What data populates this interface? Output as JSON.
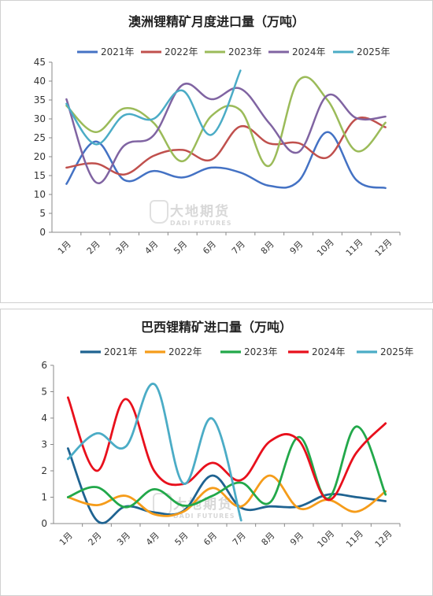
{
  "chart_data": [
    {
      "type": "line",
      "title": "澳洲锂精矿月度进口量（万吨）",
      "categories": [
        "1月",
        "2月",
        "3月",
        "4月",
        "5月",
        "6月",
        "7月",
        "8月",
        "9月",
        "10月",
        "11月",
        "12月"
      ],
      "ylim": [
        0,
        45
      ],
      "yticks": [
        0,
        5,
        10,
        15,
        20,
        25,
        30,
        35,
        40,
        45
      ],
      "grid": false,
      "legend": "top",
      "series": [
        {
          "name": "2021年",
          "color": "#4472C4",
          "values": [
            12.8,
            24.0,
            13.8,
            16.2,
            14.5,
            17.1,
            15.8,
            12.3,
            13.5,
            26.5,
            13.8,
            11.7
          ]
        },
        {
          "name": "2022年",
          "color": "#C0504D",
          "values": [
            17.1,
            18.2,
            15.3,
            20.2,
            21.8,
            19.2,
            28.0,
            23.5,
            23.6,
            19.8,
            30.0,
            27.8
          ]
        },
        {
          "name": "2023年",
          "color": "#9BBB59",
          "values": [
            33.5,
            26.5,
            32.8,
            29.0,
            18.8,
            30.8,
            32.3,
            17.6,
            40.1,
            35.0,
            21.5,
            29.0
          ]
        },
        {
          "name": "2024年",
          "color": "#8064A2",
          "values": [
            35.2,
            13.3,
            23.0,
            25.6,
            39.0,
            35.2,
            38.0,
            28.8,
            21.2,
            36.2,
            30.2,
            30.6
          ]
        },
        {
          "name": "2025年",
          "color": "#4BACC6",
          "values": [
            34.0,
            23.3,
            31.0,
            30.0,
            37.5,
            25.8,
            42.8,
            null,
            null,
            null,
            null,
            null
          ]
        }
      ]
    },
    {
      "type": "line",
      "title": "巴西锂精矿进口量（万吨）",
      "categories": [
        "1月",
        "2月",
        "3月",
        "4月",
        "5月",
        "6月",
        "7月",
        "8月",
        "9月",
        "10月",
        "11月",
        "12月"
      ],
      "ylim": [
        0,
        6
      ],
      "yticks": [
        0,
        1,
        2,
        3,
        4,
        5,
        6
      ],
      "grid": false,
      "legend": "top",
      "series": [
        {
          "name": "2021年",
          "color": "#1F6391",
          "values": [
            2.85,
            0.12,
            0.65,
            0.42,
            0.48,
            1.82,
            0.6,
            0.65,
            0.65,
            1.1,
            1.0,
            0.85
          ]
        },
        {
          "name": "2022年",
          "color": "#F59C1A",
          "values": [
            1.0,
            0.7,
            1.05,
            0.35,
            0.45,
            1.35,
            0.65,
            1.82,
            0.58,
            0.9,
            0.45,
            1.22
          ]
        },
        {
          "name": "2023年",
          "color": "#22A84A",
          "values": [
            1.0,
            1.38,
            0.62,
            1.3,
            0.68,
            1.05,
            1.55,
            0.8,
            3.28,
            0.95,
            3.68,
            1.1
          ]
        },
        {
          "name": "2024年",
          "color": "#E8101C",
          "values": [
            4.78,
            2.0,
            4.72,
            1.98,
            1.5,
            2.3,
            1.65,
            3.12,
            3.15,
            0.9,
            2.7,
            3.8
          ]
        },
        {
          "name": "2025年",
          "color": "#4BACC6",
          "values": [
            2.45,
            3.42,
            2.92,
            5.28,
            1.52,
            3.98,
            0.12,
            null,
            null,
            null,
            null,
            null
          ]
        }
      ]
    }
  ],
  "watermark": {
    "cn": "大地期货",
    "en": "DADI FUTURES"
  }
}
